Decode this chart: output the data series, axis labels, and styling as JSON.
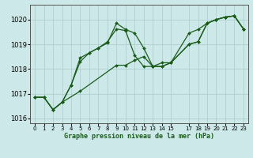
{
  "title": "Graphe pression niveau de la mer (hPa)",
  "background_color": "#cce8e8",
  "grid_color": "#aacccc",
  "line_color": "#1a5c1a",
  "xlim": [
    -0.5,
    23.5
  ],
  "ylim": [
    1015.8,
    1020.6
  ],
  "yticks": [
    1016,
    1017,
    1018,
    1019,
    1020
  ],
  "xticks": [
    0,
    1,
    2,
    3,
    4,
    5,
    6,
    7,
    8,
    9,
    10,
    11,
    12,
    13,
    14,
    15,
    17,
    18,
    19,
    20,
    21,
    22,
    23
  ],
  "xtick_labels": [
    "0",
    "1",
    "2",
    "3",
    "4",
    "5",
    "6",
    "7",
    "8",
    "9",
    "10",
    "11",
    "12",
    "13",
    "14",
    "15",
    "17",
    "18",
    "19",
    "20",
    "21",
    "22",
    "23"
  ],
  "s1_x": [
    0,
    1,
    2,
    3,
    4,
    5,
    6,
    7,
    8,
    9,
    10,
    11,
    12,
    13,
    14,
    15,
    17,
    18,
    19,
    20,
    21,
    22,
    23
  ],
  "s1_y": [
    1016.85,
    1016.85,
    1016.35,
    1016.65,
    1017.35,
    1018.45,
    1018.65,
    1018.85,
    1019.1,
    1019.62,
    1019.55,
    1018.55,
    1018.1,
    1018.1,
    1018.25,
    1018.25,
    1019.0,
    1019.1,
    1019.85,
    1020.0,
    1020.1,
    1020.15,
    1019.62
  ],
  "s2_x": [
    0,
    1,
    2,
    3,
    5,
    9,
    10,
    11,
    12,
    13,
    14,
    15,
    17,
    18,
    19,
    20,
    21,
    22,
    23
  ],
  "s2_y": [
    1016.85,
    1016.85,
    1016.35,
    1016.65,
    1017.1,
    1018.15,
    1018.15,
    1018.35,
    1018.5,
    1018.1,
    1018.1,
    1018.25,
    1019.0,
    1019.1,
    1019.85,
    1020.0,
    1020.1,
    1020.15,
    1019.62
  ],
  "s3_x": [
    0,
    1,
    2,
    3,
    4,
    5,
    6,
    7,
    8,
    9,
    10,
    11,
    12,
    13,
    14,
    15,
    17,
    18,
    19,
    20,
    21,
    22,
    23
  ],
  "s3_y": [
    1016.85,
    1016.85,
    1016.35,
    1016.65,
    1017.35,
    1018.3,
    1018.65,
    1018.85,
    1019.05,
    1019.85,
    1019.6,
    1019.45,
    1018.85,
    1018.1,
    1018.1,
    1018.25,
    1019.45,
    1019.6,
    1019.85,
    1020.0,
    1020.1,
    1020.15,
    1019.62
  ]
}
